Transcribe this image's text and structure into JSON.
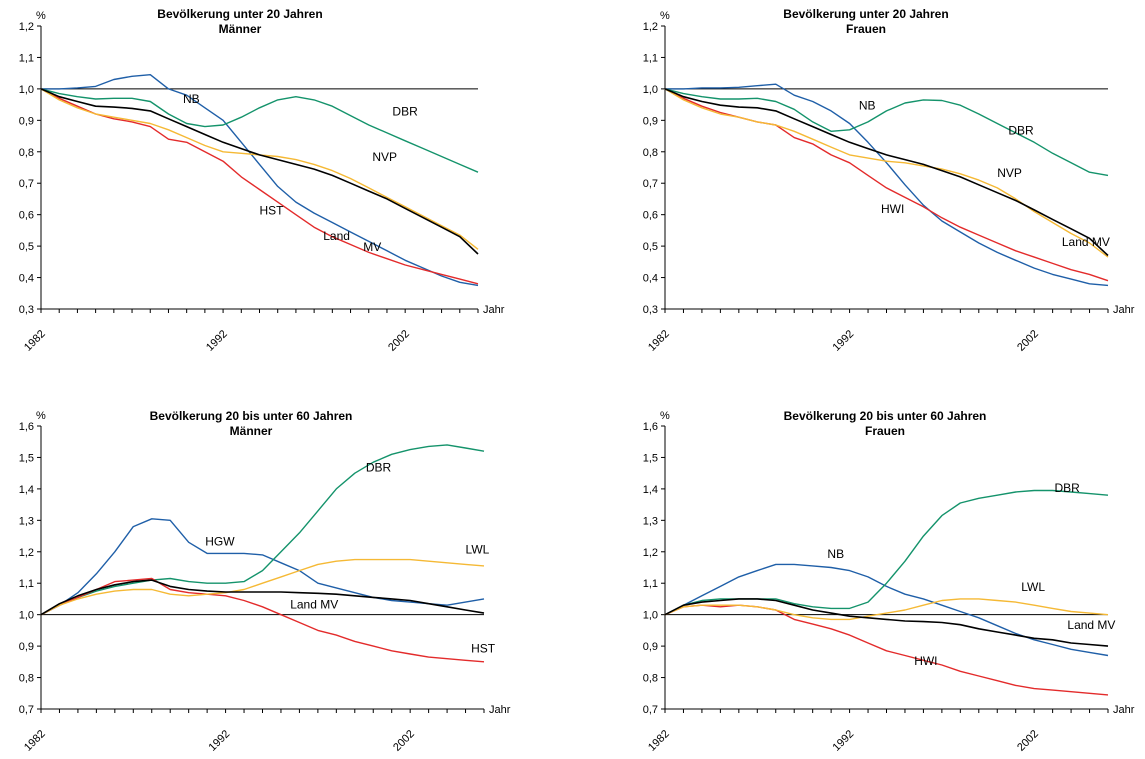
{
  "colors": {
    "NB": "#1f5fa8",
    "DBR": "#14936b",
    "HST": "#e32b2b",
    "NVP": "#f5b935",
    "Land": "#000000"
  },
  "chart_data": [
    {
      "type": "line",
      "title": "Bevölkerung unter 20 Jahren",
      "subtitle": "Männer",
      "ylabel": "%",
      "xlabel": "Jahr",
      "x": [
        1982,
        1983,
        1984,
        1985,
        1986,
        1987,
        1988,
        1989,
        1990,
        1991,
        1992,
        1993,
        1994,
        1995,
        1996,
        1997,
        1998,
        1999,
        2000,
        2001,
        2002,
        2003,
        2004,
        2005,
        2006
      ],
      "ylim": [
        0.3,
        1.2
      ],
      "yticks": [
        "0,3",
        "0,4",
        "0,5",
        "0,6",
        "0,7",
        "0,8",
        "0,9",
        "1,0",
        "1,1",
        "1,2"
      ],
      "xtick_labels": [
        "1982",
        "1992",
        "2002"
      ],
      "reference": 1.0,
      "series": [
        {
          "name": "NB",
          "key": "NB",
          "values": [
            1.0,
            1.0,
            1.003,
            1.008,
            1.03,
            1.04,
            1.045,
            1.0,
            0.98,
            0.94,
            0.9,
            0.83,
            0.76,
            0.69,
            0.64,
            0.605,
            0.575,
            0.545,
            0.515,
            0.485,
            0.455,
            0.43,
            0.405,
            0.385,
            0.375
          ]
        },
        {
          "name": "DBR",
          "key": "DBR",
          "values": [
            1.0,
            0.985,
            0.975,
            0.968,
            0.97,
            0.97,
            0.96,
            0.92,
            0.89,
            0.88,
            0.885,
            0.91,
            0.94,
            0.965,
            0.975,
            0.965,
            0.945,
            0.915,
            0.885,
            0.86,
            0.835,
            0.81,
            0.785,
            0.76,
            0.735
          ]
        },
        {
          "name": "HST",
          "key": "HST",
          "values": [
            1.0,
            0.97,
            0.945,
            0.92,
            0.905,
            0.895,
            0.88,
            0.84,
            0.83,
            0.8,
            0.77,
            0.72,
            0.68,
            0.64,
            0.6,
            0.56,
            0.53,
            0.505,
            0.48,
            0.46,
            0.44,
            0.425,
            0.41,
            0.395,
            0.38
          ]
        },
        {
          "name": "NVP",
          "key": "NVP",
          "values": [
            1.0,
            0.965,
            0.94,
            0.92,
            0.91,
            0.9,
            0.89,
            0.87,
            0.845,
            0.82,
            0.8,
            0.795,
            0.79,
            0.785,
            0.775,
            0.76,
            0.74,
            0.715,
            0.685,
            0.655,
            0.625,
            0.595,
            0.565,
            0.535,
            0.49
          ]
        },
        {
          "name": "Land MV",
          "key": "Land",
          "values": [
            1.0,
            0.975,
            0.96,
            0.945,
            0.942,
            0.938,
            0.93,
            0.905,
            0.88,
            0.855,
            0.83,
            0.81,
            0.79,
            0.775,
            0.76,
            0.745,
            0.725,
            0.7,
            0.675,
            0.65,
            0.62,
            0.59,
            0.56,
            0.53,
            0.475
          ]
        }
      ],
      "labels": [
        {
          "text": "NB",
          "x": 1989.8,
          "y": 0.955
        },
        {
          "text": "DBR",
          "x": 2001.3,
          "y": 0.915
        },
        {
          "text": "NVP",
          "x": 2000.2,
          "y": 0.77
        },
        {
          "text": "HST",
          "x": 1994.0,
          "y": 0.6
        },
        {
          "text": "Land",
          "x": 1997.5,
          "y": 0.52
        },
        {
          "text": "MV",
          "x": 1999.7,
          "y": 0.485
        }
      ]
    },
    {
      "type": "line",
      "title": "Bevölkerung unter 20 Jahren",
      "subtitle": "Frauen",
      "ylabel": "%",
      "xlabel": "Jahr",
      "x": [
        1982,
        1983,
        1984,
        1985,
        1986,
        1987,
        1988,
        1989,
        1990,
        1991,
        1992,
        1993,
        1994,
        1995,
        1996,
        1997,
        1998,
        1999,
        2000,
        2001,
        2002,
        2003,
        2004,
        2005,
        2006
      ],
      "ylim": [
        0.3,
        1.2
      ],
      "yticks": [
        "0,3",
        "0,4",
        "0,5",
        "0,6",
        "0,7",
        "0,8",
        "0,9",
        "1,0",
        "1,1",
        "1,2"
      ],
      "xtick_labels": [
        "1982",
        "1992",
        "2002"
      ],
      "reference": 1.0,
      "series": [
        {
          "name": "NB",
          "key": "NB",
          "values": [
            1.0,
            1.0,
            1.003,
            1.003,
            1.005,
            1.01,
            1.015,
            0.98,
            0.96,
            0.93,
            0.89,
            0.83,
            0.765,
            0.695,
            0.63,
            0.58,
            0.545,
            0.51,
            0.48,
            0.455,
            0.43,
            0.41,
            0.395,
            0.38,
            0.375
          ]
        },
        {
          "name": "DBR",
          "key": "DBR",
          "values": [
            1.0,
            0.985,
            0.975,
            0.968,
            0.968,
            0.97,
            0.96,
            0.935,
            0.895,
            0.865,
            0.87,
            0.895,
            0.93,
            0.955,
            0.965,
            0.963,
            0.948,
            0.92,
            0.89,
            0.86,
            0.83,
            0.795,
            0.765,
            0.735,
            0.725
          ]
        },
        {
          "name": "HWI",
          "key": "HST",
          "values": [
            1.0,
            0.97,
            0.945,
            0.925,
            0.91,
            0.895,
            0.885,
            0.845,
            0.825,
            0.79,
            0.765,
            0.725,
            0.685,
            0.655,
            0.625,
            0.59,
            0.56,
            0.535,
            0.51,
            0.485,
            0.465,
            0.445,
            0.425,
            0.41,
            0.39
          ]
        },
        {
          "name": "NVP",
          "key": "NVP",
          "values": [
            1.0,
            0.965,
            0.94,
            0.92,
            0.91,
            0.895,
            0.885,
            0.865,
            0.84,
            0.815,
            0.79,
            0.78,
            0.77,
            0.765,
            0.755,
            0.745,
            0.73,
            0.71,
            0.685,
            0.65,
            0.61,
            0.575,
            0.54,
            0.51,
            0.465
          ]
        },
        {
          "name": "Land MV",
          "key": "Land",
          "values": [
            1.0,
            0.975,
            0.96,
            0.948,
            0.942,
            0.94,
            0.93,
            0.905,
            0.88,
            0.855,
            0.83,
            0.81,
            0.79,
            0.775,
            0.76,
            0.74,
            0.72,
            0.695,
            0.67,
            0.645,
            0.615,
            0.585,
            0.555,
            0.525,
            0.47
          ]
        }
      ],
      "labels": [
        {
          "text": "NB",
          "x": 1992.5,
          "y": 0.935
        },
        {
          "text": "DBR",
          "x": 2000.6,
          "y": 0.855
        },
        {
          "text": "NVP",
          "x": 2000.0,
          "y": 0.72
        },
        {
          "text": "HWI",
          "x": 1993.7,
          "y": 0.605
        },
        {
          "text": "Land MV",
          "x": 2003.5,
          "y": 0.5
        }
      ]
    },
    {
      "type": "line",
      "title": "Bevölkerung 20 bis unter 60 Jahren",
      "subtitle": "Männer",
      "ylabel": "%",
      "xlabel": "Jahr",
      "x": [
        1982,
        1983,
        1984,
        1985,
        1986,
        1987,
        1988,
        1989,
        1990,
        1991,
        1992,
        1993,
        1994,
        1995,
        1996,
        1997,
        1998,
        1999,
        2000,
        2001,
        2002,
        2003,
        2004,
        2005,
        2006
      ],
      "ylim": [
        0.7,
        1.6
      ],
      "yticks": [
        "0,7",
        "0,8",
        "0,9",
        "1,0",
        "1,1",
        "1,2",
        "1,3",
        "1,4",
        "1,5",
        "1,6"
      ],
      "xtick_labels": [
        "1982",
        "1992",
        "2002"
      ],
      "reference": 1.0,
      "series": [
        {
          "name": "HGW",
          "key": "NB",
          "values": [
            1.0,
            1.03,
            1.07,
            1.13,
            1.2,
            1.28,
            1.305,
            1.3,
            1.23,
            1.195,
            1.195,
            1.195,
            1.19,
            1.165,
            1.14,
            1.1,
            1.085,
            1.07,
            1.055,
            1.045,
            1.04,
            1.035,
            1.03,
            1.04,
            1.05
          ]
        },
        {
          "name": "DBR",
          "key": "DBR",
          "values": [
            1.0,
            1.03,
            1.055,
            1.075,
            1.09,
            1.1,
            1.11,
            1.115,
            1.105,
            1.1,
            1.1,
            1.105,
            1.14,
            1.2,
            1.26,
            1.33,
            1.4,
            1.45,
            1.485,
            1.51,
            1.525,
            1.535,
            1.54,
            1.53,
            1.52
          ]
        },
        {
          "name": "HST",
          "key": "HST",
          "values": [
            1.0,
            1.03,
            1.055,
            1.08,
            1.105,
            1.11,
            1.115,
            1.08,
            1.07,
            1.065,
            1.06,
            1.045,
            1.025,
            1.0,
            0.975,
            0.95,
            0.935,
            0.915,
            0.9,
            0.885,
            0.875,
            0.865,
            0.86,
            0.855,
            0.85
          ]
        },
        {
          "name": "LWL",
          "key": "NVP",
          "values": [
            1.0,
            1.03,
            1.05,
            1.065,
            1.075,
            1.08,
            1.08,
            1.065,
            1.06,
            1.065,
            1.07,
            1.08,
            1.1,
            1.12,
            1.14,
            1.16,
            1.17,
            1.175,
            1.175,
            1.175,
            1.175,
            1.17,
            1.165,
            1.16,
            1.155
          ]
        },
        {
          "name": "Land MV",
          "key": "Land",
          "values": [
            1.0,
            1.035,
            1.06,
            1.08,
            1.095,
            1.105,
            1.11,
            1.09,
            1.08,
            1.075,
            1.072,
            1.072,
            1.072,
            1.072,
            1.07,
            1.068,
            1.065,
            1.06,
            1.055,
            1.05,
            1.045,
            1.035,
            1.025,
            1.015,
            1.005
          ]
        }
      ],
      "labels": [
        {
          "text": "HGW",
          "x": 1990.9,
          "y": 1.22
        },
        {
          "text": "DBR",
          "x": 1999.6,
          "y": 1.455
        },
        {
          "text": "LWL",
          "x": 2005.0,
          "y": 1.195
        },
        {
          "text": "Land MV",
          "x": 1995.5,
          "y": 1.02
        },
        {
          "text": "HST",
          "x": 2005.3,
          "y": 0.88
        }
      ]
    },
    {
      "type": "line",
      "title": "Bevölkerung 20 bis unter 60 Jahren",
      "subtitle": "Frauen",
      "ylabel": "%",
      "xlabel": "Jahr",
      "x": [
        1982,
        1983,
        1984,
        1985,
        1986,
        1987,
        1988,
        1989,
        1990,
        1991,
        1992,
        1993,
        1994,
        1995,
        1996,
        1997,
        1998,
        1999,
        2000,
        2001,
        2002,
        2003,
        2004,
        2005,
        2006
      ],
      "ylim": [
        0.7,
        1.6
      ],
      "yticks": [
        "0,7",
        "0,8",
        "0,9",
        "1,0",
        "1,1",
        "1,2",
        "1,3",
        "1,4",
        "1,5",
        "1,6"
      ],
      "xtick_labels": [
        "1982",
        "1992",
        "2002"
      ],
      "reference": 1.0,
      "series": [
        {
          "name": "NB",
          "key": "NB",
          "values": [
            1.0,
            1.03,
            1.06,
            1.09,
            1.12,
            1.14,
            1.16,
            1.16,
            1.155,
            1.15,
            1.14,
            1.12,
            1.09,
            1.065,
            1.05,
            1.03,
            1.01,
            0.99,
            0.965,
            0.94,
            0.92,
            0.905,
            0.89,
            0.88,
            0.87
          ]
        },
        {
          "name": "DBR",
          "key": "DBR",
          "values": [
            1.0,
            1.03,
            1.045,
            1.05,
            1.05,
            1.05,
            1.05,
            1.035,
            1.025,
            1.02,
            1.02,
            1.04,
            1.1,
            1.17,
            1.25,
            1.315,
            1.355,
            1.37,
            1.38,
            1.39,
            1.395,
            1.395,
            1.39,
            1.385,
            1.38
          ]
        },
        {
          "name": "HWI",
          "key": "HST",
          "values": [
            1.0,
            1.025,
            1.03,
            1.025,
            1.03,
            1.025,
            1.015,
            0.985,
            0.97,
            0.955,
            0.935,
            0.91,
            0.885,
            0.87,
            0.855,
            0.84,
            0.82,
            0.805,
            0.79,
            0.775,
            0.765,
            0.76,
            0.755,
            0.75,
            0.745
          ]
        },
        {
          "name": "LWL",
          "key": "NVP",
          "values": [
            1.0,
            1.025,
            1.03,
            1.03,
            1.03,
            1.025,
            1.015,
            1.0,
            0.99,
            0.985,
            0.985,
            0.995,
            1.005,
            1.015,
            1.03,
            1.045,
            1.05,
            1.05,
            1.045,
            1.04,
            1.03,
            1.02,
            1.01,
            1.005,
            1.0
          ]
        },
        {
          "name": "Land MV",
          "key": "Land",
          "values": [
            1.0,
            1.03,
            1.04,
            1.045,
            1.05,
            1.05,
            1.045,
            1.03,
            1.015,
            1.005,
            0.995,
            0.99,
            0.985,
            0.98,
            0.978,
            0.975,
            0.968,
            0.955,
            0.945,
            0.935,
            0.925,
            0.92,
            0.91,
            0.905,
            0.9
          ]
        }
      ],
      "labels": [
        {
          "text": "NB",
          "x": 1990.8,
          "y": 1.18
        },
        {
          "text": "DBR",
          "x": 2003.1,
          "y": 1.39
        },
        {
          "text": "LWL",
          "x": 2001.3,
          "y": 1.075
        },
        {
          "text": "Land MV",
          "x": 2003.8,
          "y": 0.955
        },
        {
          "text": "HWI",
          "x": 1995.5,
          "y": 0.84
        }
      ]
    }
  ]
}
